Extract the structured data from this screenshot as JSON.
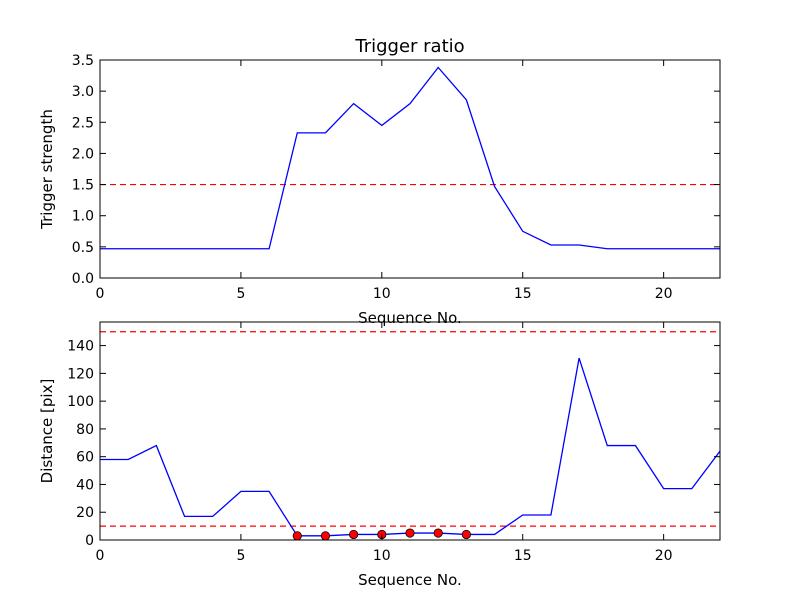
{
  "chart_data": [
    {
      "type": "line",
      "title": "Trigger ratio",
      "xlabel": "Sequence No.",
      "ylabel": "Trigger strength",
      "xlim": [
        0,
        22
      ],
      "ylim": [
        0,
        3.5
      ],
      "xticks": [
        0,
        5,
        10,
        15,
        20
      ],
      "yticks": [
        0.0,
        0.5,
        1.0,
        1.5,
        2.0,
        2.5,
        3.0,
        3.5
      ],
      "ytick_labels": [
        "0.0",
        "0.5",
        "1.0",
        "1.5",
        "2.0",
        "2.5",
        "3.0",
        "3.5"
      ],
      "grid": false,
      "series": [
        {
          "color": "#0000ff",
          "x": [
            0,
            1,
            2,
            3,
            4,
            5,
            6,
            7,
            8,
            9,
            10,
            11,
            12,
            13,
            14,
            15,
            16,
            17,
            18,
            19,
            20,
            21,
            22
          ],
          "y": [
            0.47,
            0.47,
            0.47,
            0.47,
            0.47,
            0.47,
            0.47,
            2.33,
            2.33,
            2.8,
            2.45,
            2.8,
            3.38,
            2.86,
            1.47,
            0.75,
            0.53,
            0.53,
            0.47,
            0.47,
            0.47,
            0.47,
            0.47
          ]
        }
      ],
      "hlines": [
        {
          "y": 1.5,
          "color": "#ff0000",
          "style": "dashed"
        }
      ]
    },
    {
      "type": "line",
      "title": "",
      "xlabel": "Sequence No.",
      "ylabel": "Distance [pix]",
      "xlim": [
        0,
        22
      ],
      "ylim": [
        0,
        157
      ],
      "xticks": [
        0,
        5,
        10,
        15,
        20
      ],
      "yticks": [
        0,
        20,
        40,
        60,
        80,
        100,
        120,
        140
      ],
      "ytick_labels": [
        "0",
        "20",
        "40",
        "60",
        "80",
        "100",
        "120",
        "140"
      ],
      "grid": false,
      "series": [
        {
          "color": "#0000ff",
          "x": [
            0,
            1,
            2,
            3,
            4,
            5,
            6,
            7,
            8,
            9,
            10,
            11,
            12,
            13,
            14,
            15,
            16,
            17,
            18,
            19,
            20,
            21,
            22
          ],
          "y": [
            58,
            58,
            68,
            17,
            17,
            35,
            35,
            3,
            3,
            4,
            4,
            5,
            5,
            4,
            4,
            18,
            18,
            131,
            68,
            68,
            37,
            37,
            64
          ]
        }
      ],
      "markers": {
        "color": "#ff0000",
        "x": [
          7,
          8,
          9,
          10,
          11,
          12,
          13
        ],
        "y": [
          3,
          3,
          4,
          4,
          5,
          5,
          4
        ]
      },
      "hlines": [
        {
          "y": 150,
          "color": "#ff0000",
          "style": "dashed"
        },
        {
          "y": 10,
          "color": "#ff0000",
          "style": "dashed"
        }
      ]
    }
  ]
}
